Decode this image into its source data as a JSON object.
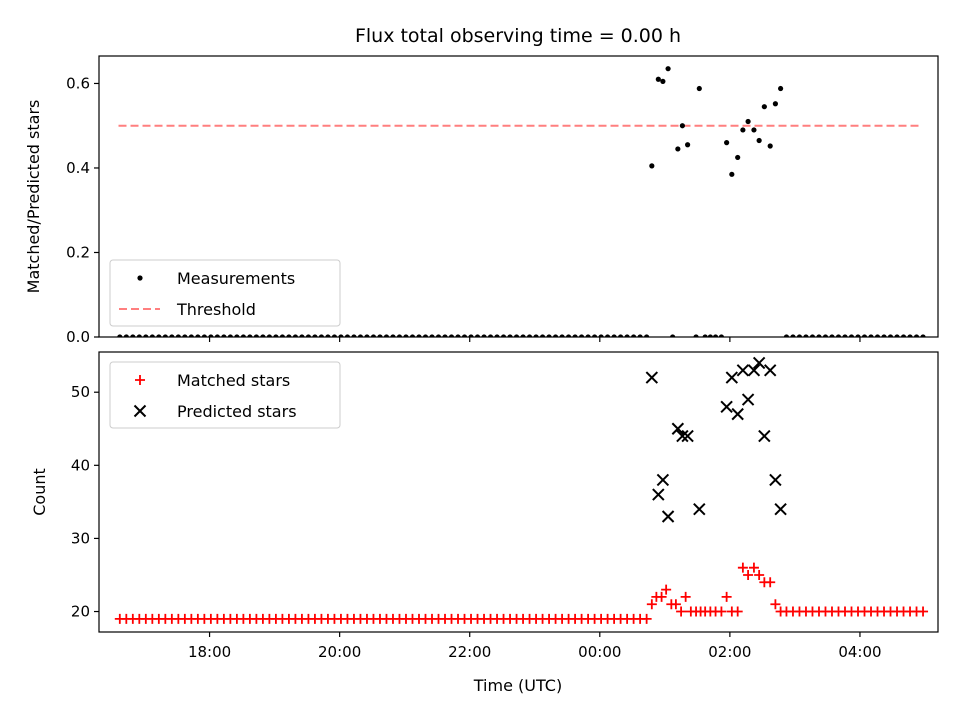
{
  "figure": {
    "title": "Flux total observing time = 0.00 h",
    "xlabel": "Time (UTC)",
    "xticks": [
      "18:00",
      "20:00",
      "22:00",
      "00:00",
      "02:00",
      "04:00"
    ]
  },
  "chart_data": [
    {
      "type": "scatter",
      "ylabel": "Matched/Predicted stars",
      "xlim": [
        16.3,
        29.2
      ],
      "ylim": [
        0,
        0.665
      ],
      "yticks": [
        "0.0",
        "0.2",
        "0.4",
        "0.6"
      ],
      "legend_position": "lower-left",
      "legend": [
        "Measurements",
        "Threshold"
      ],
      "threshold": {
        "value": 0.5,
        "x_start": 16.6,
        "x_end": 28.9,
        "color": "#ff7f7f"
      },
      "series": [
        {
          "name": "Measurements",
          "marker": "dot",
          "color": "#000000",
          "points": [
            [
              24.8,
              0.405
            ],
            [
              24.9,
              0.61
            ],
            [
              24.97,
              0.605
            ],
            [
              25.05,
              0.635
            ],
            [
              25.12,
              0.0
            ],
            [
              25.2,
              0.445
            ],
            [
              25.27,
              0.5
            ],
            [
              25.35,
              0.455
            ],
            [
              25.48,
              0.0
            ],
            [
              25.53,
              0.588
            ],
            [
              25.62,
              0.0
            ],
            [
              25.7,
              0.0
            ],
            [
              25.78,
              0.0
            ],
            [
              25.87,
              0.0
            ],
            [
              25.95,
              0.46
            ],
            [
              26.03,
              0.385
            ],
            [
              26.12,
              0.425
            ],
            [
              26.2,
              0.49
            ],
            [
              26.28,
              0.51
            ],
            [
              26.37,
              0.49
            ],
            [
              26.45,
              0.465
            ],
            [
              26.53,
              0.545
            ],
            [
              26.62,
              0.452
            ],
            [
              26.7,
              0.552
            ],
            [
              26.78,
              0.588
            ]
          ],
          "zero_run_a": {
            "x_start": 16.62,
            "x_end": 24.72,
            "step": 0.1,
            "value": 0.0
          },
          "zero_run_b": {
            "x_start": 26.87,
            "x_end": 28.97,
            "step": 0.1,
            "value": 0.0
          }
        }
      ]
    },
    {
      "type": "scatter",
      "ylabel": "Count",
      "xlim": [
        16.3,
        29.2
      ],
      "ylim": [
        17.2,
        55.5
      ],
      "yticks": [
        "20",
        "30",
        "40",
        "50"
      ],
      "legend_position": "upper-left",
      "legend": [
        "Matched stars",
        "Predicted stars"
      ],
      "series": [
        {
          "name": "Matched stars",
          "marker": "plus",
          "color": "#ff0000",
          "baseline_run_a": {
            "x_start": 16.62,
            "x_end": 24.72,
            "step": 0.1,
            "value": 19
          },
          "points": [
            [
              24.8,
              21
            ],
            [
              24.87,
              22
            ],
            [
              24.95,
              22
            ],
            [
              25.02,
              23
            ],
            [
              25.1,
              21
            ],
            [
              25.17,
              21
            ],
            [
              25.25,
              20
            ],
            [
              25.32,
              22
            ],
            [
              25.4,
              20
            ],
            [
              25.48,
              20
            ],
            [
              25.55,
              20
            ],
            [
              25.62,
              20
            ],
            [
              25.7,
              20
            ],
            [
              25.78,
              20
            ],
            [
              25.87,
              20
            ],
            [
              25.95,
              22
            ],
            [
              26.03,
              20
            ],
            [
              26.12,
              20
            ],
            [
              26.2,
              26
            ],
            [
              26.28,
              25
            ],
            [
              26.37,
              26
            ],
            [
              26.45,
              25
            ],
            [
              26.53,
              24
            ],
            [
              26.62,
              24
            ],
            [
              26.7,
              21
            ],
            [
              26.78,
              20
            ]
          ],
          "baseline_run_b": {
            "x_start": 26.87,
            "x_end": 28.97,
            "step": 0.1,
            "value": 20
          }
        },
        {
          "name": "Predicted stars",
          "marker": "x",
          "color": "#000000",
          "points": [
            [
              24.8,
              52
            ],
            [
              24.9,
              36
            ],
            [
              24.97,
              38
            ],
            [
              25.05,
              33
            ],
            [
              25.2,
              45
            ],
            [
              25.27,
              44
            ],
            [
              25.35,
              44
            ],
            [
              25.53,
              34
            ],
            [
              25.95,
              48
            ],
            [
              26.03,
              52
            ],
            [
              26.12,
              47
            ],
            [
              26.2,
              53
            ],
            [
              26.28,
              49
            ],
            [
              26.37,
              53
            ],
            [
              26.45,
              54
            ],
            [
              26.53,
              44
            ],
            [
              26.62,
              53
            ],
            [
              26.7,
              38
            ],
            [
              26.78,
              34
            ]
          ]
        }
      ]
    }
  ]
}
